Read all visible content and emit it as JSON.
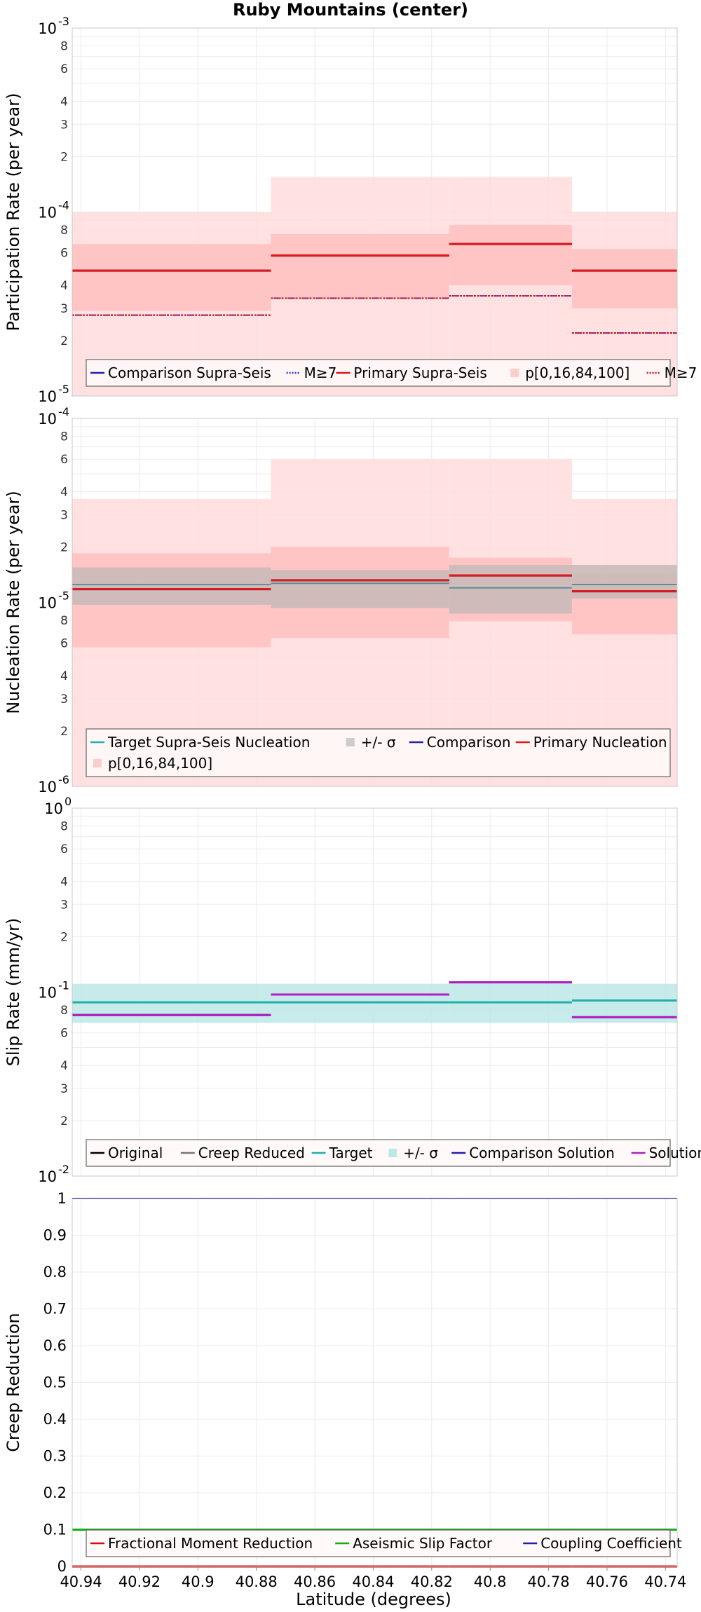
{
  "chart_data": {
    "title": "Ruby Mountains (center)",
    "xlabel": "Latitude (degrees)",
    "x_ticks": [
      "40.94",
      "40.92",
      "40.9",
      "40.88",
      "40.86",
      "40.84",
      "40.82",
      "40.8",
      "40.78",
      "40.76",
      "40.74"
    ],
    "x_tick_values": [
      40.94,
      40.92,
      40.9,
      40.88,
      40.86,
      40.84,
      40.82,
      40.8,
      40.78,
      40.76,
      40.74
    ],
    "xlim": [
      40.943,
      40.736
    ],
    "segments": [
      {
        "from": 40.943,
        "to": 40.875
      },
      {
        "from": 40.875,
        "to": 40.814
      },
      {
        "from": 40.814,
        "to": 40.772
      },
      {
        "from": 40.772,
        "to": 40.736
      }
    ],
    "panels": [
      {
        "id": "participation",
        "type": "step",
        "scale": "log",
        "ylabel": "Participation Rate (per year)",
        "ylim": [
          1e-05,
          0.001
        ],
        "y_major_ticks": [
          {
            "base": "10",
            "exp": "-5",
            "value": 1e-05
          },
          {
            "base": "10",
            "exp": "-4",
            "value": 0.0001
          },
          {
            "base": "10",
            "exp": "-3",
            "value": 0.001
          }
        ],
        "y_minor_ticks": [
          {
            "label": "2",
            "value": 2e-05
          },
          {
            "label": "3",
            "value": 3e-05
          },
          {
            "label": "4",
            "value": 4e-05
          },
          {
            "label": "6",
            "value": 6e-05
          },
          {
            "label": "8",
            "value": 8e-05
          },
          {
            "label": "2",
            "value": 0.0002
          },
          {
            "label": "3",
            "value": 0.0003
          },
          {
            "label": "4",
            "value": 0.0004
          },
          {
            "label": "6",
            "value": 0.0006
          },
          {
            "label": "8",
            "value": 0.0008
          }
        ],
        "bands": [
          {
            "name": "p[0,16,84,100] outer",
            "color": "#ffdcdc",
            "lower": [
              1e-05,
              1e-05,
              1e-05,
              1e-05
            ],
            "upper": [
              0.0001,
              0.000155,
              0.000155,
              0.0001
            ]
          },
          {
            "name": "p[0,16,84,100] inner",
            "color": "#ffc0c0",
            "lower": [
              2.9e-05,
              3.4e-05,
              4e-05,
              3e-05
            ],
            "upper": [
              6.7e-05,
              7.6e-05,
              8.5e-05,
              6.3e-05
            ]
          }
        ],
        "series": [
          {
            "name": "M≥7 (comparison)",
            "color": "#3030dd",
            "width": 2,
            "dash": "2,2",
            "values": [
              2.75e-05,
              3.4e-05,
              3.5e-05,
              2.2e-05
            ]
          },
          {
            "name": "M≥7 (primary)",
            "color": "#cc1010",
            "width": 2,
            "dash": "3,2",
            "values": [
              2.75e-05,
              3.4e-05,
              3.5e-05,
              2.2e-05
            ]
          },
          {
            "name": "Comparison Supra-Seis",
            "color": "#2020aa",
            "width": 3,
            "values": [
              4.8e-05,
              5.8e-05,
              6.7e-05,
              4.8e-05
            ]
          },
          {
            "name": "Primary Supra-Seis",
            "color": "#e01818",
            "width": 3,
            "values": [
              4.8e-05,
              5.8e-05,
              6.7e-05,
              4.8e-05
            ]
          }
        ],
        "legend": {
          "position": "bottom",
          "rows": [
            [
              {
                "label": "Comparison Supra-Seis",
                "kind": "line",
                "color": "#2020aa"
              },
              {
                "label": "M≥7",
                "kind": "dotted",
                "color": "#3030dd"
              },
              {
                "label": "Primary Supra-Seis",
                "kind": "line",
                "color": "#e01818"
              },
              {
                "label": "p[0,16,84,100]",
                "kind": "box",
                "color": "#ffcccc"
              },
              {
                "label": "M≥7",
                "kind": "dotted",
                "color": "#cc1010"
              }
            ]
          ]
        }
      },
      {
        "id": "nucleation",
        "type": "step",
        "scale": "log",
        "ylabel": "Nucleation Rate (per year)",
        "ylim": [
          1e-06,
          0.0001
        ],
        "y_major_ticks": [
          {
            "base": "10",
            "exp": "-6",
            "value": 1e-06
          },
          {
            "base": "10",
            "exp": "-5",
            "value": 1e-05
          },
          {
            "base": "10",
            "exp": "-4",
            "value": 0.0001
          }
        ],
        "y_minor_ticks": [
          {
            "label": "2",
            "value": 2e-06
          },
          {
            "label": "3",
            "value": 3e-06
          },
          {
            "label": "4",
            "value": 4e-06
          },
          {
            "label": "6",
            "value": 6e-06
          },
          {
            "label": "8",
            "value": 8e-06
          },
          {
            "label": "2",
            "value": 2e-05
          },
          {
            "label": "3",
            "value": 3e-05
          },
          {
            "label": "4",
            "value": 4e-05
          },
          {
            "label": "6",
            "value": 6e-05
          },
          {
            "label": "8",
            "value": 8e-05
          }
        ],
        "bands": [
          {
            "name": "p[0,16,84,100] outer",
            "color": "#ffdcdc",
            "lower": [
              1e-06,
              1e-06,
              1e-06,
              1e-06
            ],
            "upper": [
              3.65e-05,
              6e-05,
              6e-05,
              3.65e-05
            ]
          },
          {
            "name": "p[0,16,84,100] inner",
            "color": "#ffc0c0",
            "lower": [
              5.7e-06,
              6.4e-06,
              7.9e-06,
              6.7e-06
            ],
            "upper": [
              1.85e-05,
              2e-05,
              1.75e-05,
              1.45e-05
            ]
          },
          {
            "name": "+/- σ",
            "color": "#c8b8b8",
            "lower": [
              9.7e-06,
              9.3e-06,
              8.7e-06,
              1.05e-05
            ],
            "upper": [
              1.55e-05,
              1.5e-05,
              1.6e-05,
              1.6e-05
            ]
          }
        ],
        "series": [
          {
            "name": "Target Supra-Seis Nucleation",
            "color": "#5a8f96",
            "width": 2,
            "values": [
              1.25e-05,
              1.27e-05,
              1.2e-05,
              1.25e-05
            ]
          },
          {
            "name": "Comparison",
            "color": "#2020aa",
            "width": 3,
            "values": [
              1.18e-05,
              1.32e-05,
              1.4e-05,
              1.15e-05
            ]
          },
          {
            "name": "Primary Nucleation",
            "color": "#e01818",
            "width": 3,
            "values": [
              1.18e-05,
              1.32e-05,
              1.4e-05,
              1.15e-05
            ]
          }
        ],
        "legend": {
          "position": "bottom",
          "rows": [
            [
              {
                "label": "Target Supra-Seis Nucleation",
                "kind": "line",
                "color": "#20b2aa"
              },
              {
                "label": "+/- σ",
                "kind": "box",
                "color": "#cccccc"
              },
              {
                "label": "Comparison",
                "kind": "line",
                "color": "#2020aa"
              },
              {
                "label": "Primary Nucleation",
                "kind": "line",
                "color": "#e01818"
              }
            ],
            [
              {
                "label": "p[0,16,84,100]",
                "kind": "box",
                "color": "#ffcccc"
              }
            ]
          ]
        }
      },
      {
        "id": "slip",
        "type": "step",
        "scale": "log",
        "ylabel": "Slip Rate (mm/yr)",
        "ylim": [
          0.01,
          1
        ],
        "y_major_ticks": [
          {
            "base": "10",
            "exp": "-2",
            "value": 0.01
          },
          {
            "base": "10",
            "exp": "-1",
            "value": 0.1
          },
          {
            "base": "10",
            "exp": "0",
            "value": 1
          }
        ],
        "y_minor_ticks": [
          {
            "label": "2",
            "value": 0.02
          },
          {
            "label": "3",
            "value": 0.03
          },
          {
            "label": "4",
            "value": 0.04
          },
          {
            "label": "6",
            "value": 0.06
          },
          {
            "label": "8",
            "value": 0.08
          },
          {
            "label": "2",
            "value": 0.2
          },
          {
            "label": "3",
            "value": 0.3
          },
          {
            "label": "4",
            "value": 0.4
          },
          {
            "label": "6",
            "value": 0.6
          },
          {
            "label": "8",
            "value": 0.8
          }
        ],
        "bands": [
          {
            "name": "+/- σ",
            "color": "#bde8e8",
            "lower": [
              0.068,
              0.068,
              0.068,
              0.068
            ],
            "upper": [
              0.111,
              0.111,
              0.111,
              0.111
            ]
          }
        ],
        "series": [
          {
            "name": "Target",
            "color": "#1fb0a8",
            "width": 3,
            "values": [
              0.088,
              0.088,
              0.088,
              0.09
            ]
          },
          {
            "name": "Comparison Solution",
            "color": "#2020aa",
            "width": 3,
            "values": [
              0.075,
              0.097,
              0.113,
              0.073
            ]
          },
          {
            "name": "Solution",
            "color": "#b020c0",
            "width": 3,
            "values": [
              0.075,
              0.097,
              0.113,
              0.073
            ]
          }
        ],
        "legend": {
          "position": "bottom",
          "rows": [
            [
              {
                "label": "Original",
                "kind": "line",
                "color": "#000000"
              },
              {
                "label": "Creep Reduced",
                "kind": "line",
                "color": "#777777"
              },
              {
                "label": "Target",
                "kind": "line",
                "color": "#1fb0a8"
              },
              {
                "label": "+/- σ",
                "kind": "box",
                "color": "#bde8e8"
              },
              {
                "label": "Comparison Solution",
                "kind": "line",
                "color": "#2020aa"
              },
              {
                "label": "Solution",
                "kind": "line",
                "color": "#b020c0"
              }
            ]
          ]
        }
      },
      {
        "id": "creep",
        "type": "step",
        "scale": "linear",
        "ylabel": "Creep Reduction",
        "ylim": [
          0,
          1
        ],
        "y_ticks": [
          {
            "label": "0",
            "value": 0
          },
          {
            "label": "0.1",
            "value": 0.1
          },
          {
            "label": "0.2",
            "value": 0.2
          },
          {
            "label": "0.3",
            "value": 0.3
          },
          {
            "label": "0.4",
            "value": 0.4
          },
          {
            "label": "0.5",
            "value": 0.5
          },
          {
            "label": "0.6",
            "value": 0.6
          },
          {
            "label": "0.7",
            "value": 0.7
          },
          {
            "label": "0.8",
            "value": 0.8
          },
          {
            "label": "0.9",
            "value": 0.9
          },
          {
            "label": "1",
            "value": 1
          }
        ],
        "bands": [],
        "series": [
          {
            "name": "Fractional Moment Reduction",
            "color": "#cc1010",
            "width": 3,
            "values": [
              0,
              0,
              0,
              0
            ]
          },
          {
            "name": "Aseismic Slip Factor",
            "color": "#10b010",
            "width": 3,
            "values": [
              0.1,
              0.1,
              0.1,
              0.1
            ]
          },
          {
            "name": "Coupling Coefficient",
            "color": "#2020aa",
            "width": 2,
            "values": [
              1,
              1,
              1,
              1
            ]
          }
        ],
        "legend": {
          "position": "bottom",
          "rows": [
            [
              {
                "label": "Fractional Moment Reduction",
                "kind": "line",
                "color": "#cc1010"
              },
              {
                "label": "Aseismic Slip Factor",
                "kind": "line",
                "color": "#10b010"
              },
              {
                "label": "Coupling Coefficient",
                "kind": "line",
                "color": "#2020aa"
              }
            ]
          ]
        }
      }
    ]
  }
}
